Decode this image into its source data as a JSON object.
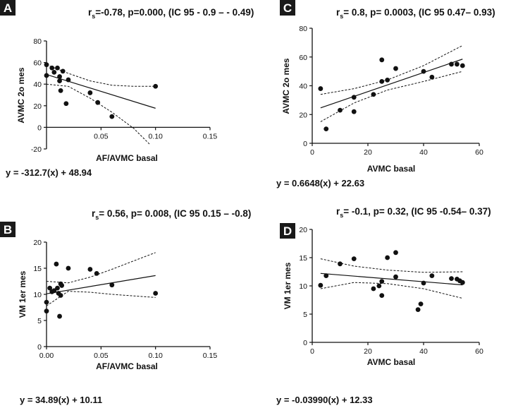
{
  "chart_data": [
    {
      "panel": "A",
      "type": "scatter",
      "stat": "rₛ=-0.78, p=0.000, (IC 95 - 0.9 – - 0.49)",
      "stat_parts": {
        "pre": "r",
        "sub": "s",
        "post": "=-0.78, p=0.000, (IC 95 - 0.9 – - 0.49)"
      },
      "equation": "y = -312.7(x) + 48.94",
      "xlabel": "AF/AVMC basal",
      "ylabel": "AVMC 2o mes",
      "xlim": [
        0,
        0.15
      ],
      "ylim": [
        -20,
        80
      ],
      "xticks": [
        0.05,
        0.1,
        0.15
      ],
      "xtick_labels": [
        "0.05",
        "0.10",
        "0.15"
      ],
      "yticks": [
        -20,
        0,
        20,
        40,
        60,
        80
      ],
      "ytick_labels": [
        "-20",
        "0",
        "20",
        "40",
        "60",
        "80"
      ],
      "points": [
        [
          0.0,
          58
        ],
        [
          0.0,
          48
        ],
        [
          0.005,
          55
        ],
        [
          0.007,
          51
        ],
        [
          0.01,
          55
        ],
        [
          0.012,
          47
        ],
        [
          0.012,
          43
        ],
        [
          0.013,
          34
        ],
        [
          0.015,
          52
        ],
        [
          0.018,
          22
        ],
        [
          0.02,
          44
        ],
        [
          0.04,
          32
        ],
        [
          0.047,
          23
        ],
        [
          0.06,
          10
        ],
        [
          0.1,
          38
        ]
      ],
      "fit": {
        "slope": -312.7,
        "intercept": 48.94,
        "x_range": [
          0,
          0.1
        ]
      },
      "ci_upper": [
        [
          0,
          58
        ],
        [
          0.02,
          50
        ],
        [
          0.04,
          43
        ],
        [
          0.06,
          39
        ],
        [
          0.08,
          38
        ],
        [
          0.1,
          38
        ]
      ],
      "ci_lower": [
        [
          0,
          40
        ],
        [
          0.02,
          38
        ],
        [
          0.04,
          27
        ],
        [
          0.06,
          14
        ],
        [
          0.08,
          -1
        ],
        [
          0.095,
          -16
        ]
      ]
    },
    {
      "panel": "B",
      "type": "scatter",
      "stat_parts": {
        "pre": "r",
        "sub": "s",
        "post": "= 0.56, p= 0.008, (IC 95 0.15 – -0.8)"
      },
      "equation": "y = 34.89(x) + 10.11",
      "xlabel": "AF/AVMC basal",
      "ylabel": "VM 1er mes",
      "xlim": [
        0,
        0.15
      ],
      "ylim": [
        0,
        20
      ],
      "xticks": [
        0.0,
        0.05,
        0.1,
        0.15
      ],
      "xtick_labels": [
        "0.00",
        "0.05",
        "0.10",
        "0.15"
      ],
      "yticks": [
        0,
        5,
        10,
        15,
        20
      ],
      "ytick_labels": [
        "0",
        "5",
        "10",
        "15",
        "20"
      ],
      "points": [
        [
          0.0,
          8.5
        ],
        [
          0.0,
          6.8
        ],
        [
          0.003,
          11.2
        ],
        [
          0.005,
          10.5
        ],
        [
          0.007,
          10.7
        ],
        [
          0.009,
          15.8
        ],
        [
          0.01,
          11.2
        ],
        [
          0.011,
          10.2
        ],
        [
          0.012,
          5.8
        ],
        [
          0.013,
          12.0
        ],
        [
          0.014,
          11.7
        ],
        [
          0.013,
          9.8
        ],
        [
          0.02,
          15.0
        ],
        [
          0.04,
          14.8
        ],
        [
          0.046,
          14.0
        ],
        [
          0.06,
          11.8
        ],
        [
          0.1,
          10.2
        ]
      ],
      "fit": {
        "slope": 34.89,
        "intercept": 10.11,
        "x_range": [
          0,
          0.1
        ]
      },
      "ci_upper": [
        [
          0,
          12.5
        ],
        [
          0.02,
          12.2
        ],
        [
          0.04,
          13.3
        ],
        [
          0.06,
          14.8
        ],
        [
          0.08,
          16.4
        ],
        [
          0.1,
          18
        ]
      ],
      "ci_lower": [
        [
          0,
          7.8
        ],
        [
          0.02,
          10.6
        ],
        [
          0.04,
          10.4
        ],
        [
          0.06,
          10.0
        ],
        [
          0.08,
          9.7
        ],
        [
          0.1,
          9.4
        ]
      ]
    },
    {
      "panel": "C",
      "type": "scatter",
      "stat_parts": {
        "pre": "r",
        "sub": "s",
        "post": "= 0.8, p= 0.0003, (IC 95 0.47–  0.93)"
      },
      "equation": "y = 0.6648(x) + 22.63",
      "xlabel": "AVMC basal",
      "ylabel": "AVMC 2o mes",
      "xlim": [
        0,
        60
      ],
      "ylim": [
        0,
        80
      ],
      "xticks": [
        0,
        20,
        40,
        60
      ],
      "xtick_labels": [
        "0",
        "20",
        "40",
        "60"
      ],
      "yticks": [
        0,
        20,
        40,
        60,
        80
      ],
      "ytick_labels": [
        "0",
        "20",
        "40",
        "60",
        "80"
      ],
      "points": [
        [
          3,
          38
        ],
        [
          5,
          10
        ],
        [
          10,
          23
        ],
        [
          15,
          22
        ],
        [
          15,
          32
        ],
        [
          22,
          34
        ],
        [
          25,
          43
        ],
        [
          25,
          58
        ],
        [
          27,
          44
        ],
        [
          30,
          52
        ],
        [
          40,
          50
        ],
        [
          43,
          46
        ],
        [
          50,
          55
        ],
        [
          52,
          55
        ],
        [
          54,
          54
        ]
      ],
      "fit": {
        "slope": 0.6648,
        "intercept": 22.63,
        "x_range": [
          3,
          54
        ]
      },
      "ci_upper": [
        [
          3,
          34
        ],
        [
          15,
          38
        ],
        [
          27,
          44
        ],
        [
          40,
          54
        ],
        [
          54,
          68
        ]
      ],
      "ci_lower": [
        [
          3,
          15
        ],
        [
          15,
          28
        ],
        [
          27,
          37
        ],
        [
          40,
          43
        ],
        [
          54,
          50
        ]
      ]
    },
    {
      "panel": "D",
      "type": "scatter",
      "stat_parts": {
        "pre": "r",
        "sub": "s",
        "post": "= -0.1, p= 0.32, (IC 95 -0.54–  0.37)"
      },
      "equation": "y = -0.03990(x) + 12.33",
      "xlabel": "AVMC basal",
      "ylabel": "VM 1er mes",
      "xlim": [
        0,
        60
      ],
      "ylim": [
        0,
        20
      ],
      "xticks": [
        0,
        20,
        40,
        60
      ],
      "xtick_labels": [
        "0",
        "20",
        "40",
        "60"
      ],
      "yticks": [
        0,
        5,
        10,
        15,
        20
      ],
      "ytick_labels": [
        "0",
        "5",
        "10",
        "15",
        "20"
      ],
      "points": [
        [
          3,
          10.1
        ],
        [
          5,
          11.8
        ],
        [
          10,
          13.9
        ],
        [
          15,
          14.8
        ],
        [
          22,
          9.5
        ],
        [
          24,
          10
        ],
        [
          25,
          10.8
        ],
        [
          25,
          8.3
        ],
        [
          27,
          15
        ],
        [
          30,
          15.9
        ],
        [
          30,
          11.6
        ],
        [
          38,
          5.8
        ],
        [
          39,
          6.8
        ],
        [
          40,
          10.5
        ],
        [
          43,
          11.8
        ],
        [
          50,
          11.3
        ],
        [
          52,
          11.2
        ],
        [
          53,
          10.9
        ],
        [
          54,
          10.6
        ]
      ],
      "fit": {
        "slope": -0.0399,
        "intercept": 12.33,
        "x_range": [
          3,
          54
        ]
      },
      "ci_upper": [
        [
          3,
          14.8
        ],
        [
          15,
          13.5
        ],
        [
          27,
          12.8
        ],
        [
          40,
          12.4
        ],
        [
          54,
          12.5
        ]
      ],
      "ci_lower": [
        [
          3,
          9.5
        ],
        [
          15,
          10.6
        ],
        [
          27,
          10.4
        ],
        [
          40,
          9.5
        ],
        [
          54,
          7.8
        ]
      ]
    }
  ]
}
